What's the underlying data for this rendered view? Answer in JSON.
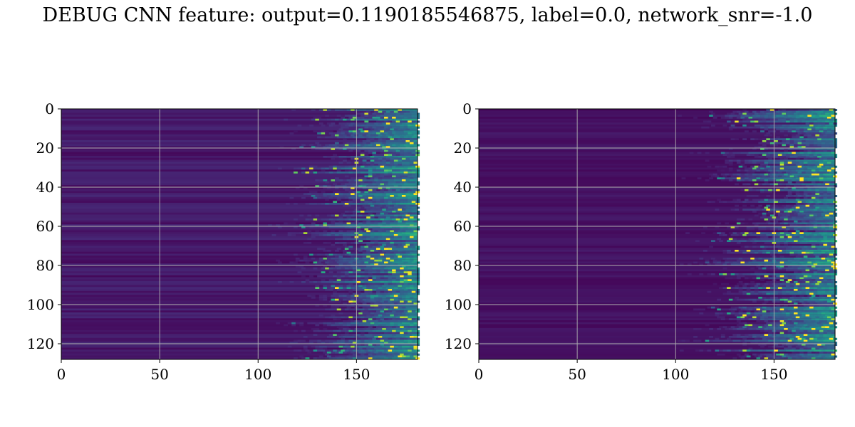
{
  "title": "DEBUG CNN feature: output=0.1190185546875, label=0.0, network_snr=-1.0",
  "chart_data": [
    {
      "type": "heatmap",
      "title": "",
      "xlabel": "",
      "ylabel": "",
      "colormap": "viridis",
      "grid": true,
      "x_range": [
        0,
        181
      ],
      "y_range": [
        128,
        0
      ],
      "rows": 128,
      "cols": 181,
      "xticks": [
        0,
        50,
        100,
        150
      ],
      "yticks": [
        0,
        20,
        40,
        60,
        80,
        100,
        120
      ],
      "xtick_labels": [
        "0",
        "50",
        "100",
        "150"
      ],
      "ytick_labels": [
        "0",
        "20",
        "40",
        "60",
        "80",
        "100",
        "120"
      ],
      "onset_col_range": [
        115,
        155
      ],
      "peak_value_fraction": 0.85
    },
    {
      "type": "heatmap",
      "title": "",
      "xlabel": "",
      "ylabel": "",
      "colormap": "viridis",
      "grid": true,
      "x_range": [
        0,
        181
      ],
      "y_range": [
        128,
        0
      ],
      "rows": 128,
      "cols": 181,
      "xticks": [
        0,
        50,
        100,
        150
      ],
      "yticks": [
        0,
        20,
        40,
        60,
        80,
        100,
        120
      ],
      "xtick_labels": [
        "0",
        "50",
        "100",
        "150"
      ],
      "ytick_labels": [
        "0",
        "20",
        "40",
        "60",
        "80",
        "100",
        "120"
      ],
      "onset_col_range": [
        110,
        160
      ],
      "peak_value_fraction": 0.9
    }
  ],
  "colors": {
    "background": "#ffffff",
    "grid": "#b0b0b0",
    "text": "#000000",
    "viridis_low": "#440154",
    "viridis_high": "#fde725"
  }
}
